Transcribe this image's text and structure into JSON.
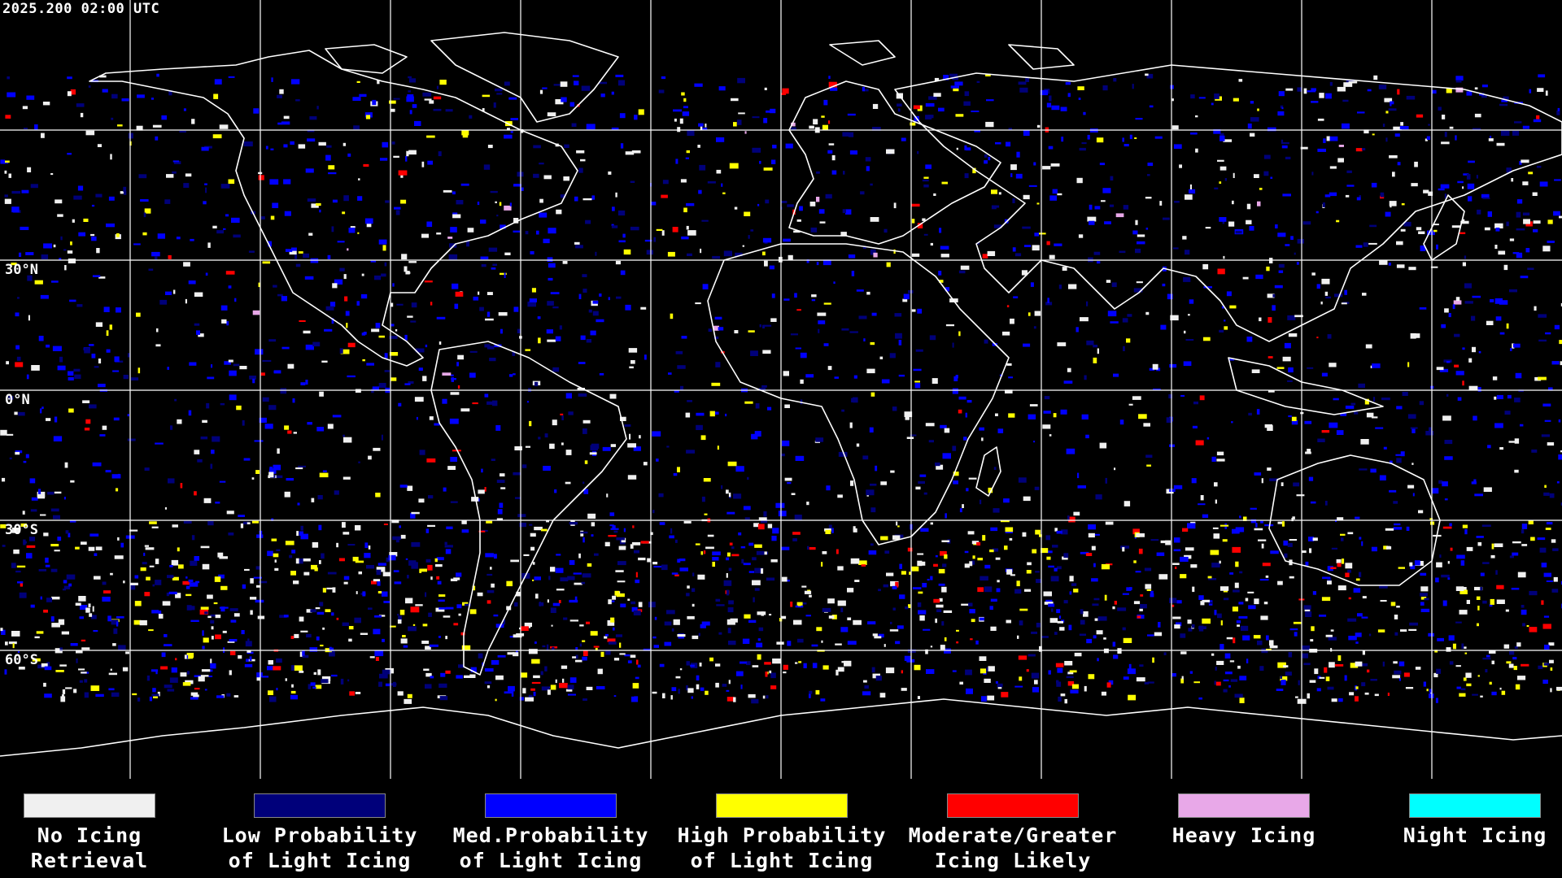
{
  "header": {
    "timestamp": "2025.200 02:00 UTC"
  },
  "map": {
    "lat_labels": {
      "n30": "30°N",
      "eq": "0°N",
      "s30": "30°S",
      "s60": "60°S"
    },
    "grid_color": "#ffffff",
    "coastline_color": "#ffffff",
    "background_color": "#000000"
  },
  "legend": {
    "items": [
      {
        "line1": "No Icing",
        "line2": "Retrieval",
        "color": "#f0f0f0"
      },
      {
        "line1": "Low Probability",
        "line2": "of Light Icing",
        "color": "#00007a"
      },
      {
        "line1": "Med.Probability",
        "line2": "of Light Icing",
        "color": "#0000ff"
      },
      {
        "line1": "High Probability",
        "line2": "of Light Icing",
        "color": "#ffff00"
      },
      {
        "line1": "Moderate/Greater",
        "line2": "Icing Likely",
        "color": "#ff0000"
      },
      {
        "line1": "Heavy Icing",
        "line2": "",
        "color": "#e8a8e8"
      },
      {
        "line1": "Night Icing",
        "line2": "",
        "color": "#00ffff"
      }
    ]
  }
}
